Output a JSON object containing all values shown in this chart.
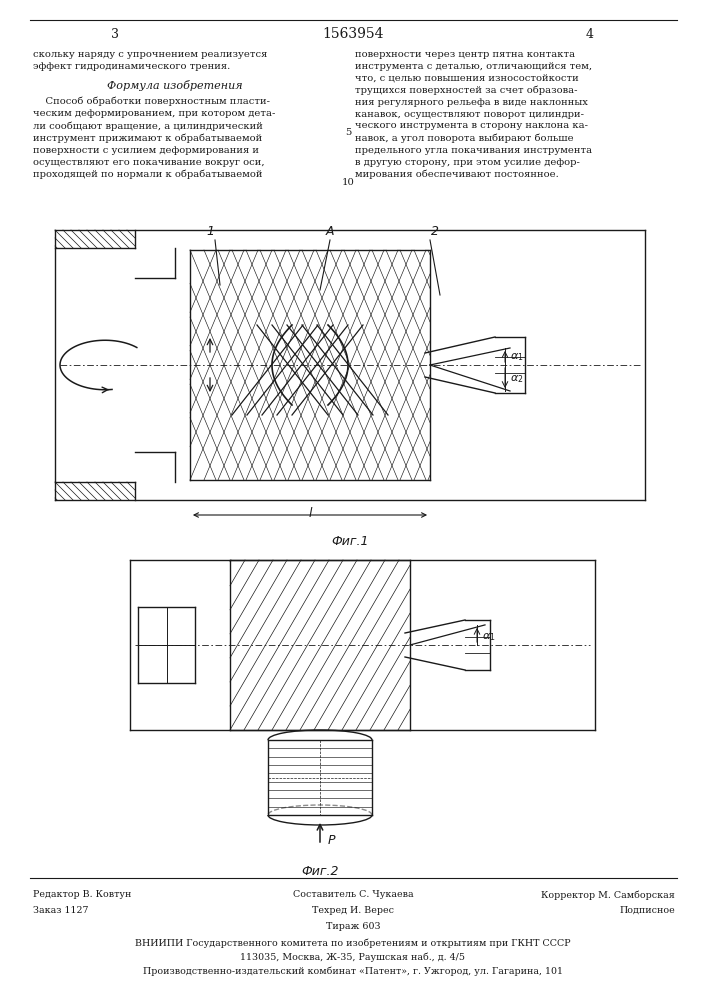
{
  "title": "1563954",
  "page_numbers": [
    "3",
    "4"
  ],
  "formula_title": "Формула изобретения",
  "left_text": "скольку наряду с упрочнением реализуется\nэффект гидродинамического трения.",
  "formula_text_left": "    Способ обработки поверхностным пласти-\nческим деформированием, при котором дета-\nли сообщают вращение, а цилиндрический\nинструмент прижимают к обрабатываемой\nповерхности с усилием деформирования и\nосуществляют его покачивание вокруг оси,\nпроходящей по нормали к обрабатываемой",
  "formula_text_right": "поверхности через центр пятна контакта\nинструмента с деталью, отличающийся тем,\nчто, с целью повышения износостойкости\nтрущихся поверхностей за счет образова-\nния регулярного рельефа в виде наклонных\nканавок, осуществляют поворот цилиндри-\nческого инструмента в сторону наклона ка-\nнавок, а угол поворота выбирают больше\nпредельного угла покачивания инструмента\nв другую сторону, при этом усилие дефор-\nмирования обеспечивают постоянное.",
  "line_number_5": "5",
  "line_number_10": "10",
  "fig1_label": "Фиг.1",
  "fig2_label": "Фиг.2",
  "label_1": "1",
  "label_2": "2",
  "label_A": "A",
  "label_l": "l",
  "label_P": "P",
  "footer_left": "Редактор В. Ковтун",
  "footer_center_top": "Составитель С. Чукаева",
  "footer_right_top": "Корректор М. Самборская",
  "footer_left2": "Заказ 1127",
  "footer_center_mid": "Техред И. Верес",
  "footer_right_mid": "Подписное",
  "footer_center_bot": "Тираж 603",
  "footer_org": "ВНИИПИ Государственного комитета по изобретениям и открытиям при ГКНТ СССР",
  "footer_addr": "113035, Москва, Ж-35, Раушская наб., д. 4/5",
  "footer_factory": "Производственно-издательский комбинат «Патент», г. Ужгород, ул. Гагарина, 101",
  "bg_color": "#ffffff",
  "line_color": "#1a1a1a",
  "text_color": "#1a1a1a"
}
